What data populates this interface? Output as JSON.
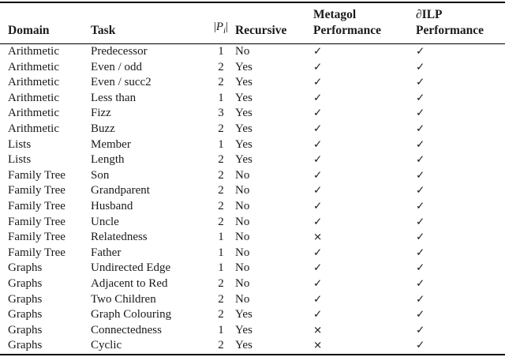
{
  "page": {
    "background": "#ffffff",
    "text_color": "#1a1a1a",
    "rule_color": "#000000"
  },
  "table": {
    "headers": {
      "domain": "Domain",
      "task": "Task",
      "pi": {
        "open": "|",
        "letter": "P",
        "sub": "i",
        "close": "|"
      },
      "recursive": "Recursive",
      "metagol": {
        "line1": "Metagol",
        "line2": "Performance"
      },
      "dilp": {
        "line1": "∂ILP",
        "line2": "Performance"
      }
    },
    "symbols": {
      "pass": "✓",
      "fail": "×"
    },
    "rows": [
      {
        "domain": "Arithmetic",
        "task": "Predecessor",
        "pi": "1",
        "recursive": "No",
        "metagol": "✓",
        "dilp": "✓"
      },
      {
        "domain": "Arithmetic",
        "task": "Even / odd",
        "pi": "2",
        "recursive": "Yes",
        "metagol": "✓",
        "dilp": "✓"
      },
      {
        "domain": "Arithmetic",
        "task": "Even / succ2",
        "pi": "2",
        "recursive": "Yes",
        "metagol": "✓",
        "dilp": "✓"
      },
      {
        "domain": "Arithmetic",
        "task": "Less than",
        "pi": "1",
        "recursive": "Yes",
        "metagol": "✓",
        "dilp": "✓"
      },
      {
        "domain": "Arithmetic",
        "task": "Fizz",
        "pi": "3",
        "recursive": "Yes",
        "metagol": "✓",
        "dilp": "✓"
      },
      {
        "domain": "Arithmetic",
        "task": "Buzz",
        "pi": "2",
        "recursive": "Yes",
        "metagol": "✓",
        "dilp": "✓"
      },
      {
        "domain": "Lists",
        "task": "Member",
        "pi": "1",
        "recursive": "Yes",
        "metagol": "✓",
        "dilp": "✓"
      },
      {
        "domain": "Lists",
        "task": "Length",
        "pi": "2",
        "recursive": "Yes",
        "metagol": "✓",
        "dilp": "✓"
      },
      {
        "domain": "Family Tree",
        "task": "Son",
        "pi": "2",
        "recursive": "No",
        "metagol": "✓",
        "dilp": "✓"
      },
      {
        "domain": "Family Tree",
        "task": "Grandparent",
        "pi": "2",
        "recursive": "No",
        "metagol": "✓",
        "dilp": "✓"
      },
      {
        "domain": "Family Tree",
        "task": "Husband",
        "pi": "2",
        "recursive": "No",
        "metagol": "✓",
        "dilp": "✓"
      },
      {
        "domain": "Family Tree",
        "task": "Uncle",
        "pi": "2",
        "recursive": "No",
        "metagol": "✓",
        "dilp": "✓"
      },
      {
        "domain": "Family Tree",
        "task": "Relatedness",
        "pi": "1",
        "recursive": "No",
        "metagol": "×",
        "dilp": "✓"
      },
      {
        "domain": "Family Tree",
        "task": "Father",
        "pi": "1",
        "recursive": "No",
        "metagol": "✓",
        "dilp": "✓"
      },
      {
        "domain": "Graphs",
        "task": "Undirected Edge",
        "pi": "1",
        "recursive": "No",
        "metagol": "✓",
        "dilp": "✓"
      },
      {
        "domain": "Graphs",
        "task": "Adjacent to Red",
        "pi": "2",
        "recursive": "No",
        "metagol": "✓",
        "dilp": "✓"
      },
      {
        "domain": "Graphs",
        "task": "Two Children",
        "pi": "2",
        "recursive": "No",
        "metagol": "✓",
        "dilp": "✓"
      },
      {
        "domain": "Graphs",
        "task": "Graph Colouring",
        "pi": "2",
        "recursive": "Yes",
        "metagol": "✓",
        "dilp": "✓"
      },
      {
        "domain": "Graphs",
        "task": "Connectedness",
        "pi": "1",
        "recursive": "Yes",
        "metagol": "×",
        "dilp": "✓"
      },
      {
        "domain": "Graphs",
        "task": "Cyclic",
        "pi": "2",
        "recursive": "Yes",
        "metagol": "×",
        "dilp": "✓"
      }
    ]
  }
}
